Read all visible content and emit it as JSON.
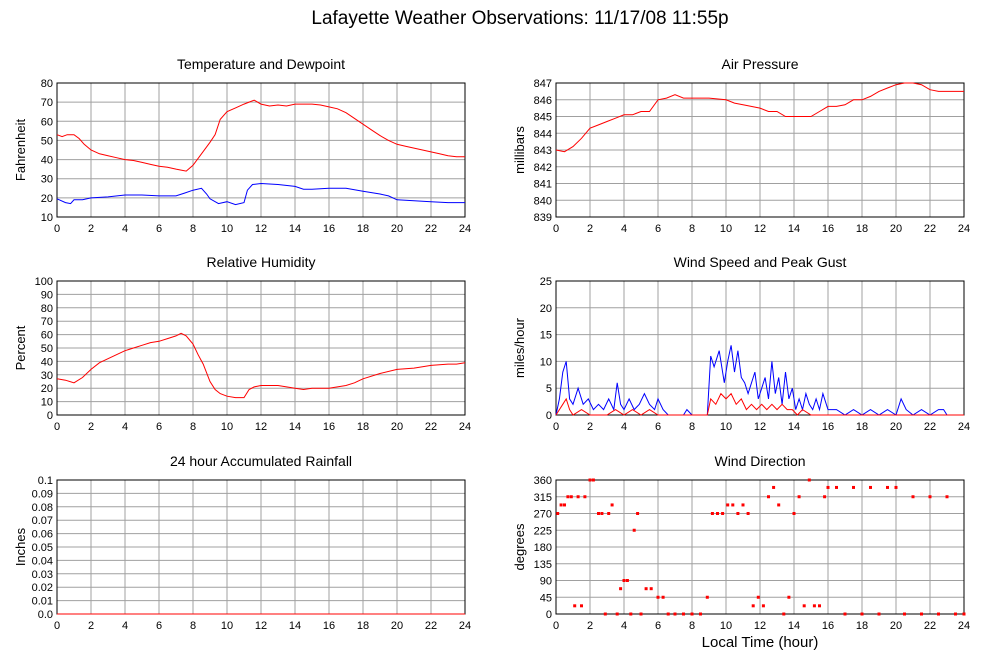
{
  "title": "Lafayette Weather Observations: 11/17/08 11:55p",
  "x_axis_title": "Local Time (hour)",
  "colors": {
    "red": "#ff0000",
    "blue": "#0000ff",
    "grid": "#a0a0a0"
  },
  "chart_data": [
    {
      "type": "line",
      "title": "Temperature and Dewpoint",
      "ylabel": "Fahrenheit",
      "xlim": [
        0,
        24
      ],
      "ylim": [
        10,
        80
      ],
      "xticks": [
        0,
        2,
        4,
        6,
        8,
        10,
        12,
        14,
        16,
        18,
        20,
        22,
        24
      ],
      "yticks": [
        10,
        20,
        30,
        40,
        50,
        60,
        70,
        80
      ],
      "grid": true,
      "series": [
        {
          "color": "#ff0000",
          "x": [
            0,
            0.3,
            0.6,
            1.0,
            1.3,
            1.6,
            2.0,
            2.5,
            3.0,
            3.5,
            4.0,
            4.5,
            5.0,
            5.5,
            6.0,
            6.5,
            7.0,
            7.3,
            7.6,
            8.0,
            8.5,
            9.0,
            9.3,
            9.6,
            10.0,
            10.5,
            11.0,
            11.3,
            11.6,
            12.0,
            12.5,
            13.0,
            13.5,
            14.0,
            14.5,
            15.0,
            15.5,
            16.0,
            16.5,
            17.0,
            17.5,
            18.0,
            18.5,
            19.0,
            19.5,
            20.0,
            20.5,
            21.0,
            21.5,
            22.0,
            22.5,
            23.0,
            23.5,
            24.0
          ],
          "y": [
            53,
            52,
            53,
            53,
            51,
            48,
            45,
            43,
            42,
            41,
            40,
            39.5,
            38.5,
            37.5,
            36.5,
            36,
            35,
            34.5,
            34,
            37,
            43,
            49,
            53,
            61,
            65,
            67,
            69,
            70,
            71,
            69,
            68,
            68.5,
            68,
            69,
            69,
            69,
            68.5,
            67.5,
            66.5,
            64.5,
            61.5,
            58.5,
            55.5,
            52.5,
            50,
            48,
            47,
            46,
            45,
            44,
            43,
            42,
            41.5,
            41.5
          ]
        },
        {
          "color": "#0000ff",
          "x": [
            0,
            0.5,
            0.8,
            1.0,
            1.5,
            2.0,
            3.0,
            4.0,
            5.0,
            6.0,
            7.0,
            7.5,
            8.0,
            8.5,
            8.8,
            9.0,
            9.5,
            10.0,
            10.5,
            11.0,
            11.2,
            11.5,
            12.0,
            13.0,
            14.0,
            14.5,
            15.0,
            16.0,
            17.0,
            18.0,
            19.0,
            19.5,
            20.0,
            21.0,
            22.0,
            23.0,
            24.0
          ],
          "y": [
            19.5,
            17.5,
            17,
            19,
            19,
            20,
            20.5,
            21.5,
            21.5,
            21,
            21,
            22.5,
            24,
            25,
            22,
            19.5,
            17,
            18,
            16.5,
            17.5,
            24,
            27,
            27.5,
            27,
            26,
            24.5,
            24.5,
            25,
            25,
            23.5,
            22,
            21,
            19,
            18.5,
            18,
            17.5,
            17.5
          ]
        }
      ]
    },
    {
      "type": "line",
      "title": "Air Pressure",
      "ylabel": "millibars",
      "xlim": [
        0,
        24
      ],
      "ylim": [
        839,
        847
      ],
      "xticks": [
        0,
        2,
        4,
        6,
        8,
        10,
        12,
        14,
        16,
        18,
        20,
        22,
        24
      ],
      "yticks": [
        839,
        840,
        841,
        842,
        843,
        844,
        845,
        846,
        847
      ],
      "grid": true,
      "series": [
        {
          "color": "#ff0000",
          "x": [
            0,
            0.5,
            1.0,
            1.5,
            2.0,
            2.5,
            3.0,
            3.5,
            4.0,
            4.5,
            5.0,
            5.5,
            6.0,
            6.5,
            7.0,
            7.5,
            8.0,
            9.0,
            10.0,
            10.5,
            11.0,
            12.0,
            12.5,
            13.0,
            13.5,
            14.0,
            14.5,
            15.0,
            15.5,
            16.0,
            16.5,
            17.0,
            17.5,
            18.0,
            18.5,
            19.0,
            19.5,
            20.0,
            20.5,
            21.0,
            21.5,
            22.0,
            22.5,
            23.0,
            24.0
          ],
          "y": [
            843,
            842.9,
            843.2,
            843.7,
            844.3,
            844.5,
            844.7,
            844.9,
            845.1,
            845.1,
            845.3,
            845.3,
            846,
            846.1,
            846.3,
            846.1,
            846.1,
            846.1,
            846.0,
            845.8,
            845.7,
            845.5,
            845.3,
            845.3,
            845,
            845,
            845,
            845,
            845.3,
            845.6,
            845.6,
            845.7,
            846,
            846,
            846.2,
            846.5,
            846.7,
            846.9,
            847,
            847,
            846.9,
            846.6,
            846.5,
            846.5,
            846.5
          ]
        }
      ]
    },
    {
      "type": "line",
      "title": "Relative Humidity",
      "ylabel": "Percent",
      "xlim": [
        0,
        24
      ],
      "ylim": [
        0,
        100
      ],
      "xticks": [
        0,
        2,
        4,
        6,
        8,
        10,
        12,
        14,
        16,
        18,
        20,
        22,
        24
      ],
      "yticks": [
        0,
        10,
        20,
        30,
        40,
        50,
        60,
        70,
        80,
        90,
        100
      ],
      "grid": true,
      "series": [
        {
          "color": "#ff0000",
          "x": [
            0,
            0.5,
            1.0,
            1.5,
            2.0,
            2.5,
            3.0,
            3.5,
            4.0,
            4.5,
            5.0,
            5.5,
            6.0,
            6.5,
            7.0,
            7.3,
            7.6,
            8.0,
            8.3,
            8.6,
            9.0,
            9.3,
            9.6,
            10.0,
            10.5,
            11.0,
            11.3,
            11.6,
            12.0,
            13.0,
            14.0,
            14.5,
            15.0,
            16.0,
            17.0,
            17.5,
            18.0,
            19.0,
            20.0,
            21.0,
            22.0,
            23.0,
            23.5,
            24.0
          ],
          "y": [
            27,
            26,
            24,
            28,
            34,
            39,
            42,
            45,
            48,
            50,
            52,
            54,
            55,
            57,
            59,
            61,
            59,
            53,
            45,
            38,
            25,
            19,
            16,
            14,
            13,
            13,
            19,
            21,
            22,
            22,
            20,
            19,
            20,
            20,
            22,
            24,
            27,
            31,
            34,
            35,
            37,
            38,
            38,
            39
          ]
        }
      ]
    },
    {
      "type": "line",
      "title": "Wind Speed and Peak Gust",
      "ylabel": "miles/hour",
      "xlim": [
        0,
        24
      ],
      "ylim": [
        0,
        25
      ],
      "xticks": [
        0,
        2,
        4,
        6,
        8,
        10,
        12,
        14,
        16,
        18,
        20,
        22,
        24
      ],
      "yticks": [
        0,
        5,
        10,
        15,
        20,
        25
      ],
      "grid": true,
      "series": [
        {
          "color": "#0000ff",
          "x": [
            0,
            0.2,
            0.4,
            0.6,
            0.8,
            1.0,
            1.3,
            1.6,
            1.9,
            2.2,
            2.5,
            2.8,
            3.1,
            3.4,
            3.6,
            3.8,
            4.0,
            4.3,
            4.6,
            4.9,
            5.2,
            5.5,
            5.8,
            6.0,
            6.3,
            6.6,
            7.0,
            7.5,
            7.7,
            8.0,
            8.5,
            8.9,
            9.1,
            9.3,
            9.6,
            9.9,
            10.1,
            10.3,
            10.5,
            10.7,
            10.9,
            11.1,
            11.3,
            11.5,
            11.7,
            11.9,
            12.1,
            12.3,
            12.5,
            12.7,
            12.9,
            13.1,
            13.3,
            13.5,
            13.7,
            13.9,
            14.1,
            14.3,
            14.5,
            14.7,
            14.9,
            15.1,
            15.3,
            15.5,
            15.7,
            16.0,
            16.5,
            17.0,
            17.5,
            18.0,
            18.5,
            19.0,
            19.5,
            20.0,
            20.3,
            20.6,
            21.0,
            21.5,
            22.0,
            22.5,
            22.8,
            23.0,
            24.0
          ],
          "y": [
            0,
            3,
            8,
            10,
            3,
            2,
            5,
            2,
            3,
            1,
            2,
            1,
            3,
            1,
            6,
            2,
            1,
            3,
            1,
            2,
            4,
            2,
            1,
            3,
            1,
            0,
            0,
            0,
            1,
            0,
            0,
            0,
            11,
            9,
            12,
            6,
            10,
            13,
            8,
            12,
            7,
            6,
            4,
            6,
            8,
            3,
            5,
            7,
            3,
            10,
            4,
            7,
            2,
            8,
            3,
            5,
            1,
            3,
            1,
            4,
            2,
            1,
            3,
            1,
            4,
            1,
            1,
            0,
            1,
            0,
            1,
            0,
            1,
            0,
            3,
            1,
            0,
            1,
            0,
            1,
            1,
            0,
            0
          ]
        },
        {
          "color": "#ff0000",
          "x": [
            0,
            0.2,
            0.4,
            0.6,
            0.8,
            1.0,
            1.5,
            2.0,
            3.0,
            3.5,
            4.0,
            4.5,
            5.0,
            5.5,
            6.0,
            7.0,
            8.0,
            8.9,
            9.1,
            9.4,
            9.7,
            10.0,
            10.3,
            10.6,
            10.9,
            11.2,
            11.5,
            11.8,
            12.1,
            12.4,
            12.7,
            13.0,
            13.3,
            13.6,
            13.9,
            14.2,
            14.5,
            15.0,
            16.0,
            24.0
          ],
          "y": [
            0,
            1,
            2,
            3,
            1,
            0,
            1,
            0,
            0,
            1,
            0,
            1,
            0,
            1,
            0,
            0,
            0,
            0,
            3,
            2,
            4,
            3,
            4,
            2,
            3,
            1,
            2,
            1,
            2,
            1,
            2,
            1,
            2,
            1,
            1,
            0,
            1,
            0,
            0,
            0
          ]
        }
      ]
    },
    {
      "type": "line",
      "title": "24 hour Accumulated Rainfall",
      "ylabel": "Inches",
      "xlim": [
        0,
        24
      ],
      "ylim": [
        0,
        0.1
      ],
      "xticks": [
        0,
        2,
        4,
        6,
        8,
        10,
        12,
        14,
        16,
        18,
        20,
        22,
        24
      ],
      "yticks": [
        "0.0",
        "0.01",
        "0.02",
        "0.03",
        "0.04",
        "0.05",
        "0.06",
        "0.07",
        "0.08",
        "0.09",
        "0.1"
      ],
      "grid": true,
      "series": [
        {
          "color": "#ff0000",
          "x": [
            0,
            24
          ],
          "y": [
            0,
            0
          ]
        }
      ]
    },
    {
      "type": "scatter",
      "title": "Wind Direction",
      "ylabel": "degrees",
      "xlim": [
        0,
        24
      ],
      "ylim": [
        0,
        360
      ],
      "xticks": [
        0,
        2,
        4,
        6,
        8,
        10,
        12,
        14,
        16,
        18,
        20,
        22,
        24
      ],
      "yticks": [
        0,
        45,
        90,
        135,
        180,
        225,
        270,
        315,
        360
      ],
      "grid": true,
      "series": [
        {
          "color": "#ff0000",
          "x": [
            0.1,
            0.3,
            0.5,
            0.7,
            0.9,
            1.1,
            1.3,
            1.5,
            1.7,
            2.0,
            2.2,
            2.5,
            2.7,
            2.9,
            3.1,
            3.3,
            3.6,
            3.8,
            4.0,
            4.2,
            4.4,
            4.6,
            4.8,
            5.0,
            5.3,
            5.6,
            6.0,
            6.3,
            6.6,
            7.0,
            7.5,
            8.0,
            8.5,
            8.9,
            9.2,
            9.5,
            9.8,
            10.1,
            10.4,
            10.7,
            11.0,
            11.3,
            11.6,
            11.9,
            12.2,
            12.5,
            12.8,
            13.1,
            13.4,
            13.7,
            14.0,
            14.3,
            14.6,
            14.9,
            15.2,
            15.5,
            15.8,
            16.0,
            16.5,
            17.0,
            17.5,
            18.0,
            18.5,
            19.0,
            19.5,
            20.0,
            20.5,
            21.0,
            21.5,
            22.0,
            22.5,
            23.0,
            23.5,
            24.0
          ],
          "y": [
            270,
            293,
            293,
            315,
            315,
            22,
            315,
            22,
            315,
            360,
            360,
            270,
            270,
            0,
            270,
            293,
            0,
            68,
            90,
            90,
            0,
            225,
            270,
            0,
            68,
            68,
            45,
            45,
            0,
            0,
            0,
            0,
            0,
            45,
            270,
            270,
            270,
            293,
            293,
            270,
            293,
            270,
            22,
            45,
            22,
            315,
            340,
            293,
            0,
            45,
            270,
            315,
            22,
            360,
            22,
            22,
            315,
            340,
            340,
            0,
            340,
            0,
            340,
            0,
            340,
            340,
            0,
            315,
            0,
            315,
            0,
            315,
            0,
            0
          ]
        }
      ]
    }
  ]
}
